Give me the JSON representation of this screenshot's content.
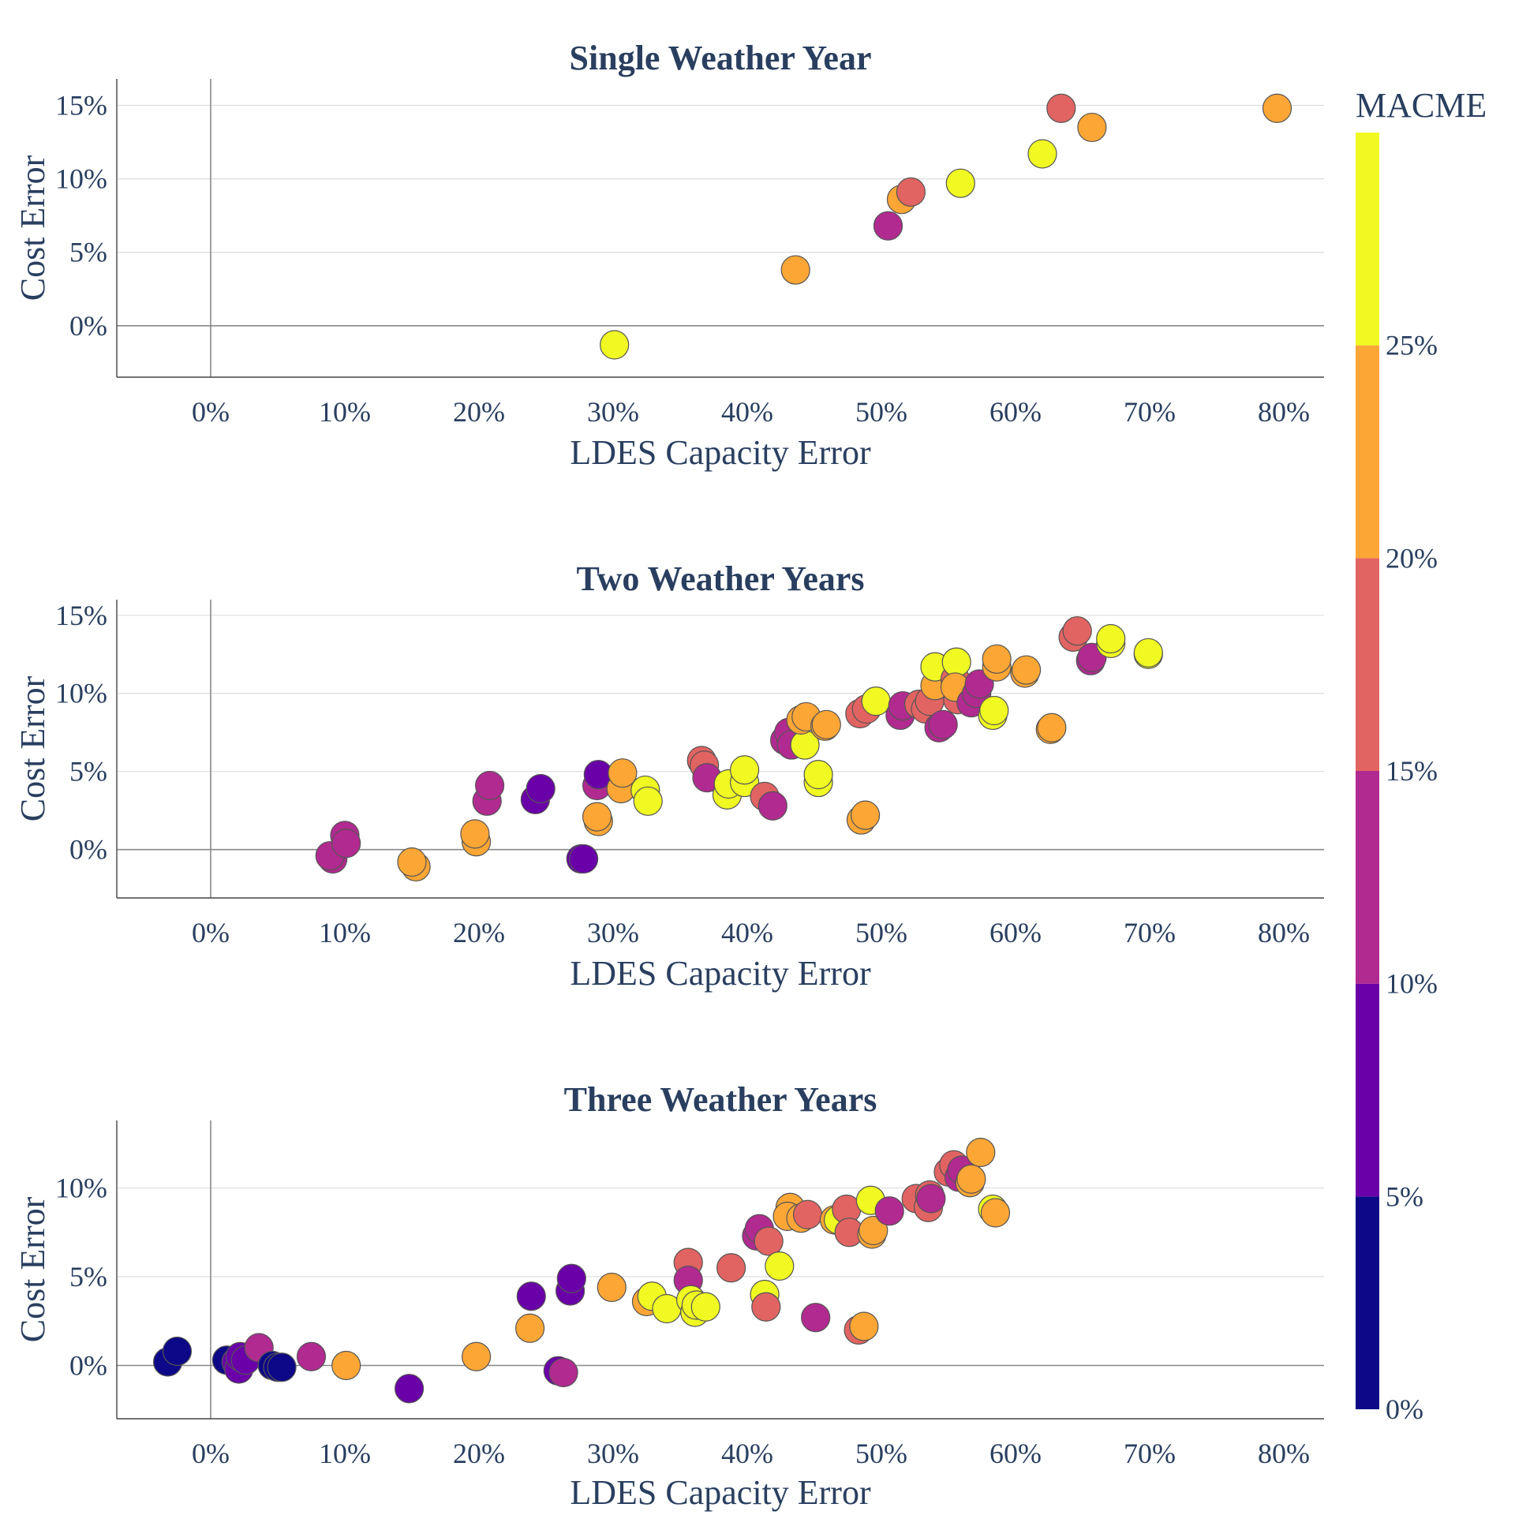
{
  "chart_data": [
    {
      "type": "scatter",
      "title": "Single Weather Year",
      "xlabel": "LDES Capacity Error",
      "ylabel": "Cost Error",
      "xlim": [
        -7,
        83
      ],
      "ylim": [
        -3.5,
        16.8
      ],
      "xticks": [
        0,
        10,
        20,
        30,
        40,
        50,
        60,
        70,
        80
      ],
      "xtick_labels": [
        "0%",
        "10%",
        "20%",
        "30%",
        "40%",
        "50%",
        "60%",
        "70%",
        "80%"
      ],
      "yticks": [
        0,
        5,
        10,
        15
      ],
      "ytick_labels": [
        "0%",
        "5%",
        "10%",
        "15%"
      ],
      "grid": true,
      "color_variable": "MACME",
      "points": [
        {
          "x": 30.1,
          "y": -1.3,
          "c": 27
        },
        {
          "x": 43.6,
          "y": 3.8,
          "c": 22
        },
        {
          "x": 50.5,
          "y": 6.8,
          "c": 12
        },
        {
          "x": 51.5,
          "y": 8.6,
          "c": 22
        },
        {
          "x": 52.2,
          "y": 9.1,
          "c": 17
        },
        {
          "x": 55.9,
          "y": 9.7,
          "c": 27
        },
        {
          "x": 62.0,
          "y": 11.7,
          "c": 27
        },
        {
          "x": 63.4,
          "y": 14.8,
          "c": 17
        },
        {
          "x": 65.7,
          "y": 13.5,
          "c": 22
        },
        {
          "x": 79.5,
          "y": 14.8,
          "c": 22
        }
      ]
    },
    {
      "type": "scatter",
      "title": "Two Weather Years",
      "xlabel": "LDES Capacity Error",
      "ylabel": "Cost Error",
      "xlim": [
        -7,
        83
      ],
      "ylim": [
        -3.1,
        16.0
      ],
      "xticks": [
        0,
        10,
        20,
        30,
        40,
        50,
        60,
        70,
        80
      ],
      "xtick_labels": [
        "0%",
        "10%",
        "20%",
        "30%",
        "40%",
        "50%",
        "60%",
        "70%",
        "80%"
      ],
      "yticks": [
        0,
        5,
        10,
        15
      ],
      "ytick_labels": [
        "0%",
        "5%",
        "10%",
        "15%"
      ],
      "grid": true,
      "color_variable": "MACME",
      "points": [
        {
          "x": 9.1,
          "y": -0.6,
          "c": 12
        },
        {
          "x": 8.9,
          "y": -0.4,
          "c": 12
        },
        {
          "x": 10.0,
          "y": 0.9,
          "c": 12
        },
        {
          "x": 10.1,
          "y": 0.4,
          "c": 12
        },
        {
          "x": 15.3,
          "y": -1.1,
          "c": 22
        },
        {
          "x": 15.0,
          "y": -0.8,
          "c": 22
        },
        {
          "x": 19.8,
          "y": 0.5,
          "c": 22
        },
        {
          "x": 19.7,
          "y": 1.0,
          "c": 22
        },
        {
          "x": 20.6,
          "y": 3.1,
          "c": 12
        },
        {
          "x": 20.8,
          "y": 4.1,
          "c": 12
        },
        {
          "x": 24.2,
          "y": 3.2,
          "c": 7
        },
        {
          "x": 24.6,
          "y": 3.9,
          "c": 7
        },
        {
          "x": 27.6,
          "y": -0.6,
          "c": 7
        },
        {
          "x": 27.8,
          "y": -0.6,
          "c": 7
        },
        {
          "x": 28.8,
          "y": 4.1,
          "c": 12
        },
        {
          "x": 28.9,
          "y": 4.8,
          "c": 7
        },
        {
          "x": 28.9,
          "y": 1.8,
          "c": 22
        },
        {
          "x": 28.8,
          "y": 2.1,
          "c": 22
        },
        {
          "x": 30.6,
          "y": 3.9,
          "c": 22
        },
        {
          "x": 30.7,
          "y": 4.9,
          "c": 22
        },
        {
          "x": 32.4,
          "y": 3.8,
          "c": 27
        },
        {
          "x": 32.6,
          "y": 3.1,
          "c": 27
        },
        {
          "x": 36.6,
          "y": 5.7,
          "c": 17
        },
        {
          "x": 36.8,
          "y": 5.4,
          "c": 17
        },
        {
          "x": 37.0,
          "y": 4.6,
          "c": 12
        },
        {
          "x": 38.5,
          "y": 3.5,
          "c": 27
        },
        {
          "x": 38.6,
          "y": 4.2,
          "c": 27
        },
        {
          "x": 39.8,
          "y": 4.3,
          "c": 27
        },
        {
          "x": 39.8,
          "y": 5.1,
          "c": 27
        },
        {
          "x": 41.3,
          "y": 3.4,
          "c": 17
        },
        {
          "x": 41.9,
          "y": 2.8,
          "c": 12
        },
        {
          "x": 42.8,
          "y": 7.0,
          "c": 12
        },
        {
          "x": 43.1,
          "y": 7.5,
          "c": 12
        },
        {
          "x": 43.3,
          "y": 6.7,
          "c": 12
        },
        {
          "x": 44.3,
          "y": 6.7,
          "c": 27
        },
        {
          "x": 44.0,
          "y": 8.3,
          "c": 22
        },
        {
          "x": 44.4,
          "y": 8.5,
          "c": 22
        },
        {
          "x": 45.3,
          "y": 4.3,
          "c": 27
        },
        {
          "x": 45.3,
          "y": 4.8,
          "c": 27
        },
        {
          "x": 45.8,
          "y": 7.9,
          "c": 22
        },
        {
          "x": 45.9,
          "y": 8.0,
          "c": 22
        },
        {
          "x": 48.5,
          "y": 1.9,
          "c": 22
        },
        {
          "x": 48.8,
          "y": 2.2,
          "c": 22
        },
        {
          "x": 48.4,
          "y": 8.7,
          "c": 17
        },
        {
          "x": 48.9,
          "y": 9.0,
          "c": 17
        },
        {
          "x": 49.6,
          "y": 9.5,
          "c": 27
        },
        {
          "x": 51.4,
          "y": 8.6,
          "c": 12
        },
        {
          "x": 51.6,
          "y": 9.2,
          "c": 12
        },
        {
          "x": 52.8,
          "y": 9.3,
          "c": 17
        },
        {
          "x": 53.3,
          "y": 9.0,
          "c": 17
        },
        {
          "x": 53.6,
          "y": 9.5,
          "c": 17
        },
        {
          "x": 54.3,
          "y": 7.8,
          "c": 12
        },
        {
          "x": 54.6,
          "y": 8.0,
          "c": 12
        },
        {
          "x": 54.0,
          "y": 10.5,
          "c": 22
        },
        {
          "x": 54.0,
          "y": 11.7,
          "c": 27
        },
        {
          "x": 55.5,
          "y": 10.9,
          "c": 17
        },
        {
          "x": 55.6,
          "y": 12.0,
          "c": 27
        },
        {
          "x": 55.7,
          "y": 9.6,
          "c": 17
        },
        {
          "x": 55.5,
          "y": 10.4,
          "c": 22
        },
        {
          "x": 56.7,
          "y": 9.4,
          "c": 12
        },
        {
          "x": 57.1,
          "y": 10.0,
          "c": 12
        },
        {
          "x": 57.3,
          "y": 10.6,
          "c": 12
        },
        {
          "x": 58.3,
          "y": 8.6,
          "c": 27
        },
        {
          "x": 58.4,
          "y": 8.9,
          "c": 27
        },
        {
          "x": 58.6,
          "y": 11.7,
          "c": 22
        },
        {
          "x": 58.6,
          "y": 12.2,
          "c": 22
        },
        {
          "x": 60.7,
          "y": 11.3,
          "c": 22
        },
        {
          "x": 60.8,
          "y": 11.5,
          "c": 22
        },
        {
          "x": 62.6,
          "y": 7.7,
          "c": 22
        },
        {
          "x": 62.7,
          "y": 7.8,
          "c": 22
        },
        {
          "x": 64.3,
          "y": 13.6,
          "c": 17
        },
        {
          "x": 64.6,
          "y": 14.0,
          "c": 17
        },
        {
          "x": 65.6,
          "y": 12.1,
          "c": 12
        },
        {
          "x": 65.7,
          "y": 12.3,
          "c": 12
        },
        {
          "x": 67.1,
          "y": 13.2,
          "c": 27
        },
        {
          "x": 67.1,
          "y": 13.5,
          "c": 27
        },
        {
          "x": 69.9,
          "y": 12.5,
          "c": 27
        },
        {
          "x": 69.9,
          "y": 12.6,
          "c": 27
        }
      ]
    },
    {
      "type": "scatter",
      "title": "Three Weather Years",
      "xlabel": "LDES Capacity Error",
      "ylabel": "Cost Error",
      "xlim": [
        -7,
        83
      ],
      "ylim": [
        -3.0,
        13.8
      ],
      "xticks": [
        0,
        10,
        20,
        30,
        40,
        50,
        60,
        70,
        80
      ],
      "xtick_labels": [
        "0%",
        "10%",
        "20%",
        "30%",
        "40%",
        "50%",
        "60%",
        "70%",
        "80%"
      ],
      "yticks": [
        0,
        5,
        10
      ],
      "ytick_labels": [
        "0%",
        "5%",
        "10%"
      ],
      "grid": true,
      "color_variable": "MACME",
      "points": [
        {
          "x": -3.2,
          "y": 0.2,
          "c": 2
        },
        {
          "x": -2.5,
          "y": 0.8,
          "c": 2
        },
        {
          "x": 1.2,
          "y": 0.3,
          "c": 2
        },
        {
          "x": 1.9,
          "y": 0.2,
          "c": 7
        },
        {
          "x": 2.1,
          "y": -0.2,
          "c": 7
        },
        {
          "x": 2.2,
          "y": 0.5,
          "c": 7
        },
        {
          "x": 2.6,
          "y": 0.3,
          "c": 7
        },
        {
          "x": 3.6,
          "y": 1.0,
          "c": 12
        },
        {
          "x": 4.6,
          "y": 0.0,
          "c": 2
        },
        {
          "x": 5.0,
          "y": -0.1,
          "c": 2
        },
        {
          "x": 5.3,
          "y": -0.1,
          "c": 2
        },
        {
          "x": 7.5,
          "y": 0.5,
          "c": 12
        },
        {
          "x": 10.1,
          "y": 0.0,
          "c": 22
        },
        {
          "x": 14.8,
          "y": -1.3,
          "c": 7
        },
        {
          "x": 19.8,
          "y": 0.5,
          "c": 22
        },
        {
          "x": 23.8,
          "y": 2.1,
          "c": 22
        },
        {
          "x": 23.9,
          "y": 3.9,
          "c": 7
        },
        {
          "x": 25.9,
          "y": -0.3,
          "c": 7
        },
        {
          "x": 26.3,
          "y": -0.4,
          "c": 12
        },
        {
          "x": 26.8,
          "y": 4.2,
          "c": 7
        },
        {
          "x": 26.9,
          "y": 4.9,
          "c": 7
        },
        {
          "x": 29.9,
          "y": 4.4,
          "c": 22
        },
        {
          "x": 32.5,
          "y": 3.6,
          "c": 22
        },
        {
          "x": 32.9,
          "y": 3.9,
          "c": 27
        },
        {
          "x": 34.0,
          "y": 3.2,
          "c": 27
        },
        {
          "x": 35.6,
          "y": 5.8,
          "c": 17
        },
        {
          "x": 35.6,
          "y": 4.8,
          "c": 12
        },
        {
          "x": 35.8,
          "y": 3.7,
          "c": 27
        },
        {
          "x": 36.1,
          "y": 3.0,
          "c": 27
        },
        {
          "x": 36.2,
          "y": 3.4,
          "c": 27
        },
        {
          "x": 36.9,
          "y": 3.3,
          "c": 27
        },
        {
          "x": 38.8,
          "y": 5.5,
          "c": 17
        },
        {
          "x": 40.7,
          "y": 7.3,
          "c": 12
        },
        {
          "x": 40.9,
          "y": 7.7,
          "c": 12
        },
        {
          "x": 41.3,
          "y": 4.0,
          "c": 27
        },
        {
          "x": 41.4,
          "y": 3.3,
          "c": 17
        },
        {
          "x": 41.6,
          "y": 7.0,
          "c": 17
        },
        {
          "x": 42.4,
          "y": 5.6,
          "c": 27
        },
        {
          "x": 43.2,
          "y": 8.9,
          "c": 22
        },
        {
          "x": 43.0,
          "y": 8.4,
          "c": 22
        },
        {
          "x": 44.0,
          "y": 8.3,
          "c": 22
        },
        {
          "x": 44.5,
          "y": 8.5,
          "c": 17
        },
        {
          "x": 45.1,
          "y": 2.7,
          "c": 12
        },
        {
          "x": 46.5,
          "y": 8.2,
          "c": 22
        },
        {
          "x": 46.8,
          "y": 8.2,
          "c": 27
        },
        {
          "x": 47.4,
          "y": 8.8,
          "c": 17
        },
        {
          "x": 47.6,
          "y": 7.5,
          "c": 17
        },
        {
          "x": 48.3,
          "y": 2.0,
          "c": 17
        },
        {
          "x": 48.7,
          "y": 2.2,
          "c": 22
        },
        {
          "x": 49.2,
          "y": 9.3,
          "c": 27
        },
        {
          "x": 49.3,
          "y": 7.4,
          "c": 22
        },
        {
          "x": 49.4,
          "y": 7.6,
          "c": 22
        },
        {
          "x": 50.6,
          "y": 8.7,
          "c": 12
        },
        {
          "x": 52.6,
          "y": 9.4,
          "c": 17
        },
        {
          "x": 53.5,
          "y": 8.9,
          "c": 17
        },
        {
          "x": 53.6,
          "y": 9.6,
          "c": 17
        },
        {
          "x": 53.7,
          "y": 9.4,
          "c": 12
        },
        {
          "x": 55.0,
          "y": 10.9,
          "c": 17
        },
        {
          "x": 55.4,
          "y": 11.3,
          "c": 17
        },
        {
          "x": 55.8,
          "y": 10.6,
          "c": 12
        },
        {
          "x": 56.0,
          "y": 11.0,
          "c": 12
        },
        {
          "x": 56.6,
          "y": 10.3,
          "c": 22
        },
        {
          "x": 56.7,
          "y": 10.5,
          "c": 22
        },
        {
          "x": 57.4,
          "y": 12.0,
          "c": 22
        },
        {
          "x": 58.3,
          "y": 8.8,
          "c": 27
        },
        {
          "x": 58.5,
          "y": 8.6,
          "c": 22
        }
      ]
    }
  ],
  "colorbar": {
    "title": "MACME",
    "range": [
      0,
      30
    ],
    "tick_values": [
      0,
      5,
      10,
      15,
      20,
      25
    ],
    "tick_labels": [
      "0%",
      "5%",
      "10%",
      "15%",
      "20%",
      "25%"
    ],
    "colors": [
      "#0d0887",
      "#6a00a8",
      "#b12a90",
      "#e16462",
      "#fca636",
      "#f0f921"
    ]
  }
}
